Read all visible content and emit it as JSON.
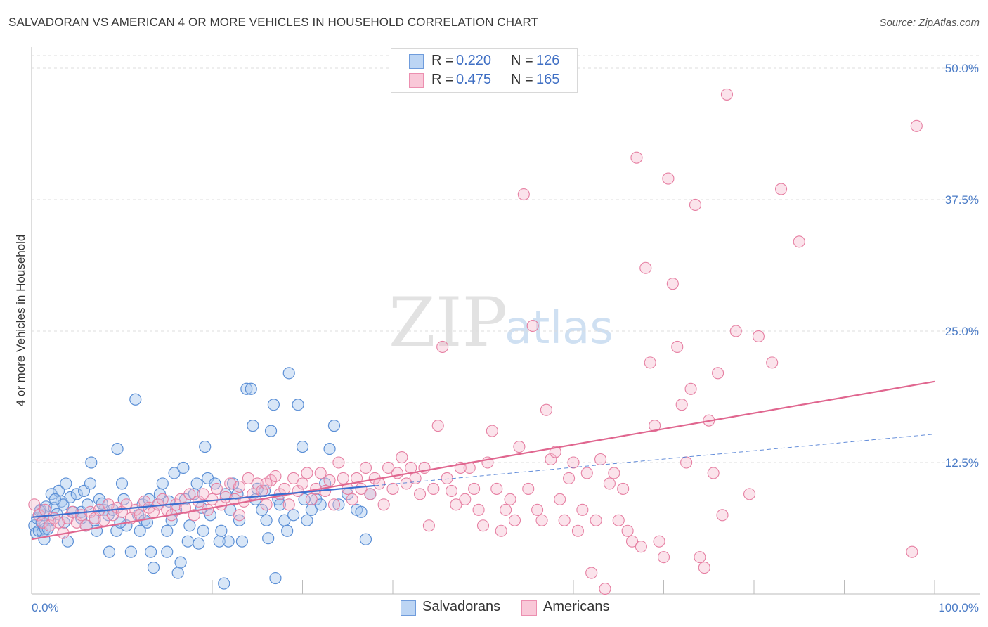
{
  "title": "SALVADORAN VS AMERICAN 4 OR MORE VEHICLES IN HOUSEHOLD CORRELATION CHART",
  "source": "Source: ZipAtlas.com",
  "watermark": {
    "zip": "ZIP",
    "atlas": "atlas"
  },
  "legend": {
    "rows": [
      {
        "r_label": "R =",
        "r_value": "0.220",
        "n_label": "N =",
        "n_value": "126"
      },
      {
        "r_label": "R =",
        "r_value": "0.475",
        "n_label": "N =",
        "n_value": "165"
      }
    ]
  },
  "bottom_legend": [
    "Salvadorans",
    "Americans"
  ],
  "colors": {
    "salvadoran_fill": "#a9c8ee",
    "salvadoran_stroke": "#5b8fd6",
    "salvadoran_line": "#3b6fd0",
    "american_fill": "#f6b9cd",
    "american_stroke": "#e67fa2",
    "american_line": "#e0668f",
    "tick_text": "#4a7bc6",
    "grid": "#dddddd"
  },
  "chart_data": {
    "type": "scatter",
    "title": "SALVADORAN VS AMERICAN 4 OR MORE VEHICLES IN HOUSEHOLD CORRELATION CHART",
    "xlabel": "",
    "ylabel": "4 or more Vehicles in Household",
    "xlim": [
      0,
      100
    ],
    "ylim": [
      0,
      52
    ],
    "x_tick_labels": [
      "0.0%",
      "100.0%"
    ],
    "y_ticks": [
      12.5,
      25.0,
      37.5,
      50.0
    ],
    "y_tick_labels": [
      "12.5%",
      "25.0%",
      "37.5%",
      "50.0%"
    ],
    "grid": "horizontal dashed",
    "legend_position": "top-center",
    "series": [
      {
        "name": "Salvadorans",
        "r": 0.22,
        "n": 126,
        "trend": {
          "x": [
            0,
            38
          ],
          "y": [
            7.3,
            10.3
          ]
        },
        "trend_extension": {
          "x": [
            38,
            100
          ],
          "y": [
            10.3,
            15.2
          ]
        },
        "points": [
          [
            0.3,
            6.5
          ],
          [
            0.5,
            5.8
          ],
          [
            0.6,
            7.2
          ],
          [
            0.8,
            6.0
          ],
          [
            1.0,
            8.0
          ],
          [
            1.1,
            6.8
          ],
          [
            1.2,
            5.9
          ],
          [
            1.3,
            7.5
          ],
          [
            1.5,
            6.2
          ],
          [
            1.6,
            8.3
          ],
          [
            2.0,
            7.0
          ],
          [
            2.2,
            9.5
          ],
          [
            2.5,
            8.2
          ],
          [
            2.8,
            7.6
          ],
          [
            3.0,
            9.8
          ],
          [
            3.3,
            8.8
          ],
          [
            3.5,
            8.5
          ],
          [
            3.8,
            10.5
          ],
          [
            4.0,
            5.0
          ],
          [
            4.3,
            9.2
          ],
          [
            5.0,
            9.5
          ],
          [
            5.5,
            7.8
          ],
          [
            5.8,
            9.8
          ],
          [
            6.0,
            6.5
          ],
          [
            6.2,
            8.5
          ],
          [
            6.5,
            10.5
          ],
          [
            6.6,
            12.5
          ],
          [
            7.0,
            7.0
          ],
          [
            7.2,
            6.0
          ],
          [
            7.5,
            9.0
          ],
          [
            8.0,
            8.0
          ],
          [
            8.5,
            7.5
          ],
          [
            8.6,
            4.0
          ],
          [
            9.0,
            8.0
          ],
          [
            9.4,
            6.0
          ],
          [
            9.5,
            13.8
          ],
          [
            10.0,
            10.5
          ],
          [
            10.2,
            9.0
          ],
          [
            10.5,
            6.5
          ],
          [
            11.0,
            4.0
          ],
          [
            11.5,
            18.5
          ],
          [
            11.8,
            7.5
          ],
          [
            12.0,
            6.0
          ],
          [
            12.3,
            8.5
          ],
          [
            12.5,
            7.0
          ],
          [
            13.0,
            9.0
          ],
          [
            13.2,
            4.0
          ],
          [
            13.5,
            2.5
          ],
          [
            14.0,
            8.5
          ],
          [
            14.2,
            9.5
          ],
          [
            14.5,
            10.5
          ],
          [
            15.0,
            6.0
          ],
          [
            15.0,
            4.0
          ],
          [
            15.5,
            7.0
          ],
          [
            15.8,
            11.5
          ],
          [
            16.0,
            8.0
          ],
          [
            16.2,
            2.0
          ],
          [
            16.5,
            3.0
          ],
          [
            16.8,
            12.0
          ],
          [
            17.0,
            9.0
          ],
          [
            17.3,
            5.0
          ],
          [
            17.5,
            6.5
          ],
          [
            18.0,
            9.5
          ],
          [
            18.3,
            10.5
          ],
          [
            18.5,
            4.8
          ],
          [
            19.0,
            6.0
          ],
          [
            19.2,
            14.0
          ],
          [
            19.5,
            11.0
          ],
          [
            19.8,
            7.5
          ],
          [
            20.3,
            10.5
          ],
          [
            20.8,
            5.0
          ],
          [
            21.0,
            6.0
          ],
          [
            21.3,
            1.0
          ],
          [
            21.8,
            5.0
          ],
          [
            22.0,
            8.0
          ],
          [
            22.3,
            10.5
          ],
          [
            22.8,
            9.5
          ],
          [
            23.3,
            5.0
          ],
          [
            23.8,
            19.5
          ],
          [
            24.3,
            19.5
          ],
          [
            24.5,
            16.0
          ],
          [
            24.8,
            9.0
          ],
          [
            25.0,
            10.0
          ],
          [
            25.5,
            8.0
          ],
          [
            26.0,
            7.0
          ],
          [
            26.2,
            5.3
          ],
          [
            26.5,
            15.5
          ],
          [
            26.8,
            18.0
          ],
          [
            27.0,
            1.5
          ],
          [
            27.3,
            9.0
          ],
          [
            27.5,
            8.5
          ],
          [
            28.0,
            7.0
          ],
          [
            28.3,
            6.0
          ],
          [
            28.5,
            21.0
          ],
          [
            29.0,
            7.5
          ],
          [
            29.5,
            18.0
          ],
          [
            30.0,
            14.0
          ],
          [
            30.2,
            9.0
          ],
          [
            30.5,
            7.0
          ],
          [
            31.0,
            8.0
          ],
          [
            31.5,
            9.0
          ],
          [
            32.0,
            8.5
          ],
          [
            32.5,
            10.5
          ],
          [
            33.0,
            13.8
          ],
          [
            33.5,
            16.0
          ],
          [
            34.0,
            8.5
          ],
          [
            35.0,
            9.5
          ],
          [
            36.0,
            8.0
          ],
          [
            36.5,
            7.8
          ],
          [
            37.0,
            5.2
          ],
          [
            37.5,
            9.5
          ],
          [
            5.5,
            7.2
          ],
          [
            7.8,
            8.6
          ],
          [
            9.8,
            6.8
          ],
          [
            12.8,
            6.8
          ],
          [
            15.2,
            8.8
          ],
          [
            18.8,
            8.2
          ],
          [
            21.5,
            9.5
          ],
          [
            23.0,
            7.0
          ],
          [
            25.8,
            9.8
          ],
          [
            3.6,
            6.8
          ],
          [
            4.6,
            7.8
          ],
          [
            2.6,
            9.0
          ],
          [
            1.8,
            6.2
          ],
          [
            1.4,
            5.2
          ],
          [
            0.9,
            7.9
          ]
        ]
      },
      {
        "name": "Americans",
        "r": 0.475,
        "n": 165,
        "trend": {
          "x": [
            0,
            100
          ],
          "y": [
            5.2,
            20.2
          ]
        },
        "points": [
          [
            0.3,
            8.5
          ],
          [
            0.8,
            7.5
          ],
          [
            1.2,
            6.8
          ],
          [
            1.5,
            8.0
          ],
          [
            2.0,
            6.5
          ],
          [
            2.5,
            7.2
          ],
          [
            3.0,
            6.8
          ],
          [
            3.5,
            5.8
          ],
          [
            4.0,
            7.2
          ],
          [
            4.5,
            7.8
          ],
          [
            5.0,
            6.8
          ],
          [
            5.5,
            7.5
          ],
          [
            6.0,
            6.5
          ],
          [
            6.5,
            7.8
          ],
          [
            7.0,
            7.2
          ],
          [
            7.5,
            8.0
          ],
          [
            8.0,
            7.0
          ],
          [
            8.5,
            8.5
          ],
          [
            9.0,
            7.5
          ],
          [
            9.5,
            8.2
          ],
          [
            10.0,
            7.8
          ],
          [
            10.5,
            8.5
          ],
          [
            11.0,
            7.2
          ],
          [
            11.5,
            8.0
          ],
          [
            12.0,
            7.5
          ],
          [
            12.5,
            8.8
          ],
          [
            13.0,
            8.2
          ],
          [
            13.5,
            7.8
          ],
          [
            14.0,
            8.5
          ],
          [
            14.5,
            9.0
          ],
          [
            15.0,
            8.0
          ],
          [
            15.5,
            7.5
          ],
          [
            16.0,
            8.5
          ],
          [
            16.5,
            9.0
          ],
          [
            17.0,
            8.2
          ],
          [
            17.5,
            9.5
          ],
          [
            18.0,
            7.5
          ],
          [
            18.5,
            8.8
          ],
          [
            19.0,
            9.5
          ],
          [
            19.5,
            8.0
          ],
          [
            20.0,
            9.0
          ],
          [
            20.5,
            10.0
          ],
          [
            21.0,
            8.5
          ],
          [
            21.5,
            9.2
          ],
          [
            22.0,
            10.5
          ],
          [
            22.5,
            9.0
          ],
          [
            23.0,
            10.2
          ],
          [
            23.5,
            8.8
          ],
          [
            24.0,
            11.0
          ],
          [
            24.5,
            9.5
          ],
          [
            25.0,
            10.5
          ],
          [
            25.5,
            9.8
          ],
          [
            26.0,
            8.5
          ],
          [
            26.5,
            10.8
          ],
          [
            27.0,
            11.2
          ],
          [
            27.5,
            9.5
          ],
          [
            28.0,
            10.0
          ],
          [
            28.5,
            8.5
          ],
          [
            29.0,
            11.0
          ],
          [
            29.5,
            9.8
          ],
          [
            30.0,
            10.5
          ],
          [
            30.5,
            11.5
          ],
          [
            31.0,
            9.0
          ],
          [
            31.5,
            10.0
          ],
          [
            32.0,
            11.5
          ],
          [
            32.5,
            9.8
          ],
          [
            33.0,
            10.8
          ],
          [
            33.5,
            8.5
          ],
          [
            34.0,
            12.5
          ],
          [
            34.5,
            11.0
          ],
          [
            35.0,
            10.0
          ],
          [
            35.5,
            9.0
          ],
          [
            36.0,
            11.0
          ],
          [
            36.5,
            10.0
          ],
          [
            37.0,
            12.0
          ],
          [
            37.5,
            9.5
          ],
          [
            38.0,
            11.0
          ],
          [
            38.5,
            10.5
          ],
          [
            39.0,
            8.5
          ],
          [
            39.5,
            12.0
          ],
          [
            40.0,
            10.0
          ],
          [
            40.5,
            11.5
          ],
          [
            41.0,
            13.0
          ],
          [
            41.5,
            10.5
          ],
          [
            42.0,
            12.0
          ],
          [
            42.5,
            11.0
          ],
          [
            43.0,
            9.5
          ],
          [
            43.5,
            12.0
          ],
          [
            44.0,
            6.5
          ],
          [
            44.5,
            10.0
          ],
          [
            45.0,
            16.0
          ],
          [
            45.5,
            23.5
          ],
          [
            46.0,
            11.0
          ],
          [
            46.5,
            9.8
          ],
          [
            47.0,
            8.5
          ],
          [
            47.5,
            12.0
          ],
          [
            48.0,
            9.0
          ],
          [
            48.5,
            12.0
          ],
          [
            49.0,
            10.0
          ],
          [
            49.5,
            8.0
          ],
          [
            50.0,
            6.5
          ],
          [
            50.5,
            12.5
          ],
          [
            51.0,
            15.5
          ],
          [
            51.5,
            10.0
          ],
          [
            52.0,
            6.0
          ],
          [
            52.5,
            8.0
          ],
          [
            53.0,
            9.0
          ],
          [
            53.5,
            7.0
          ],
          [
            54.0,
            14.0
          ],
          [
            54.5,
            38.0
          ],
          [
            55.0,
            10.0
          ],
          [
            55.5,
            25.5
          ],
          [
            56.0,
            8.0
          ],
          [
            56.5,
            7.0
          ],
          [
            57.0,
            17.5
          ],
          [
            57.5,
            12.8
          ],
          [
            58.0,
            13.5
          ],
          [
            58.5,
            9.0
          ],
          [
            59.0,
            7.0
          ],
          [
            59.5,
            11.0
          ],
          [
            60.0,
            12.5
          ],
          [
            60.5,
            6.0
          ],
          [
            61.0,
            8.0
          ],
          [
            61.5,
            11.5
          ],
          [
            62.0,
            2.0
          ],
          [
            62.5,
            7.0
          ],
          [
            63.0,
            12.8
          ],
          [
            63.5,
            0.5
          ],
          [
            64.0,
            10.5
          ],
          [
            64.5,
            11.5
          ],
          [
            65.0,
            7.0
          ],
          [
            65.5,
            10.0
          ],
          [
            66.0,
            6.0
          ],
          [
            66.5,
            5.0
          ],
          [
            67.0,
            41.5
          ],
          [
            67.5,
            4.5
          ],
          [
            68.0,
            31.0
          ],
          [
            68.5,
            22.0
          ],
          [
            69.0,
            16.0
          ],
          [
            69.5,
            5.0
          ],
          [
            70.0,
            3.5
          ],
          [
            70.5,
            39.5
          ],
          [
            71.0,
            29.5
          ],
          [
            71.5,
            23.5
          ],
          [
            72.0,
            18.0
          ],
          [
            72.5,
            12.5
          ],
          [
            73.0,
            19.5
          ],
          [
            73.5,
            37.0
          ],
          [
            74.0,
            3.5
          ],
          [
            74.5,
            2.5
          ],
          [
            75.0,
            16.5
          ],
          [
            75.5,
            11.5
          ],
          [
            76.0,
            21.0
          ],
          [
            76.5,
            7.5
          ],
          [
            77.0,
            47.5
          ],
          [
            78.0,
            25.0
          ],
          [
            79.5,
            9.5
          ],
          [
            80.5,
            24.5
          ],
          [
            82.0,
            22.0
          ],
          [
            83.0,
            38.5
          ],
          [
            85.0,
            33.5
          ],
          [
            97.5,
            4.0
          ],
          [
            98.0,
            44.5
          ],
          [
            23.0,
            7.5
          ],
          [
            26.0,
            10.5
          ]
        ]
      }
    ]
  }
}
